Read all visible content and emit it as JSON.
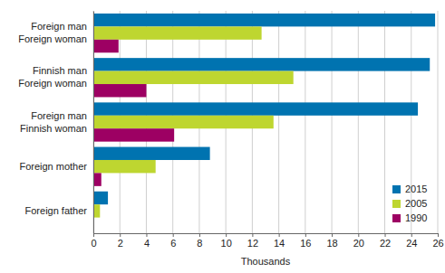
{
  "chart_data": {
    "type": "bar",
    "orientation": "horizontal",
    "categories": [
      "Foreign man\nForeign woman",
      "Finnish man\nForeign woman",
      "Foreign man\nFinnish woman",
      "Foreign mother",
      "Foreign father"
    ],
    "series": [
      {
        "name": "2015",
        "color": "#0073b0",
        "values": [
          25.8,
          25.4,
          24.5,
          8.8,
          1.1
        ]
      },
      {
        "name": "2005",
        "color": "#bed630",
        "values": [
          12.7,
          15.1,
          13.6,
          4.7,
          0.5
        ]
      },
      {
        "name": "1990",
        "color": "#9d0063",
        "values": [
          1.9,
          4.0,
          6.1,
          0.6,
          0
        ]
      }
    ],
    "xlabel": "Thousands",
    "xlim": [
      0,
      26
    ],
    "xticks": [
      0,
      2,
      4,
      6,
      8,
      10,
      12,
      14,
      16,
      18,
      20,
      22,
      24,
      26
    ],
    "grid": true,
    "legend": "lower right"
  }
}
